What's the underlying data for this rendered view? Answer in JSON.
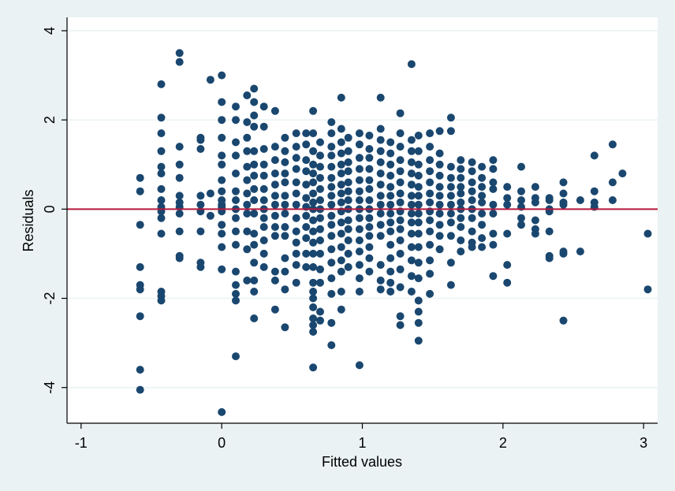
{
  "chart_data": {
    "type": "scatter",
    "title": "",
    "xlabel": "Fitted values",
    "ylabel": "Residuals",
    "xlim": [
      -1.1,
      3.1
    ],
    "ylim": [
      -4.8,
      4.3
    ],
    "xticks": [
      -1,
      0,
      1,
      2,
      3
    ],
    "yticks": [
      -4,
      -2,
      0,
      2,
      4
    ],
    "grid": "horizontal",
    "reference_line": {
      "y": 0,
      "color": "#b5173b"
    },
    "colors": {
      "background": "#eaf2f3",
      "plot_area": "#ffffff",
      "points": "#1a476f",
      "grid": "#eaf2f3"
    },
    "x_labels": [
      "-1",
      "0",
      "1",
      "2",
      "3"
    ],
    "y_labels": [
      "-4",
      "-2",
      "0",
      "2",
      "4"
    ],
    "point_count": 620,
    "point_columns_x": [
      -0.58,
      -0.43,
      -0.3,
      -0.15,
      -0.08,
      0,
      0.1,
      0.18,
      0.23,
      0.3,
      0.38,
      0.45,
      0.53,
      0.6,
      0.65,
      0.7,
      0.78,
      0.85,
      0.9,
      0.98,
      1.05,
      1.13,
      1.2,
      1.27,
      1.35,
      1.4,
      1.48,
      1.55,
      1.63,
      1.7,
      1.78,
      1.85,
      1.93,
      2.03,
      2.13,
      2.23,
      2.33,
      2.43,
      2.55,
      2.65,
      2.78,
      2.85,
      3.03
    ],
    "point_columns_y": [
      [
        0.7,
        0.4,
        -0.35,
        -1.3,
        -1.7,
        -1.8,
        -2.4,
        -3.6,
        -4.05
      ],
      [
        2.8,
        2.05,
        1.7,
        1.3,
        0.95,
        0.8,
        0.45,
        0.2,
        0.05,
        -0.05,
        -0.2,
        -0.55,
        -1.85,
        -1.95,
        -2.05
      ],
      [
        3.5,
        3.3,
        1.4,
        1.0,
        0.7,
        0.3,
        0.15,
        0.05,
        -0.1,
        -0.5,
        -1.05,
        -1.1
      ],
      [
        1.6,
        1.55,
        1.35,
        0.3,
        0.1,
        -0.05,
        -0.5,
        -1.2,
        -1.3
      ],
      [
        2.9,
        0.35,
        -0.15
      ],
      [
        3.0,
        2.4,
        2.0,
        1.6,
        1.2,
        1.0,
        0.65,
        0.4,
        0.2,
        0.1,
        0.05,
        -0.05,
        -0.35,
        -0.55,
        -0.85,
        -1.35,
        -4.55
      ],
      [
        2.3,
        2.0,
        1.5,
        1.2,
        0.8,
        0.4,
        0.2,
        0.0,
        -0.2,
        -0.5,
        -0.8,
        -1.4,
        -1.7,
        -1.9,
        -2.05,
        -3.3
      ],
      [
        2.55,
        1.95,
        1.6,
        1.3,
        0.95,
        0.65,
        0.35,
        0.1,
        -0.1,
        -0.5,
        -0.9,
        -1.6
      ],
      [
        2.7,
        2.4,
        2.1,
        1.85,
        1.3,
        1.0,
        0.75,
        0.45,
        0.2,
        -0.1,
        -0.55,
        -0.8,
        -1.2,
        -1.6,
        -1.85,
        -2.45
      ],
      [
        2.3,
        1.85,
        1.35,
        1.0,
        0.75,
        0.45,
        0.2,
        0.0,
        -0.2,
        -0.4,
        -0.7,
        -1.0,
        -1.3
      ],
      [
        2.2,
        1.4,
        1.1,
        0.8,
        0.55,
        0.3,
        0.1,
        -0.15,
        -0.4,
        -0.6,
        -1.4,
        -1.6,
        -2.25
      ],
      [
        1.6,
        1.3,
        1.05,
        0.8,
        0.6,
        0.3,
        0.1,
        -0.1,
        -0.4,
        -0.6,
        -1.1,
        -1.4,
        -1.8,
        -2.65
      ],
      [
        1.7,
        1.4,
        1.15,
        0.9,
        0.6,
        0.35,
        0.1,
        -0.2,
        -0.5,
        -0.75,
        -1.0,
        -1.25,
        -1.65
      ],
      [
        1.7,
        1.45,
        1.1,
        0.85,
        0.55,
        0.25,
        0.05,
        -0.15,
        -0.4,
        -0.65,
        -1.0,
        -1.3
      ],
      [
        2.2,
        1.7,
        1.3,
        1.0,
        0.8,
        0.6,
        0.35,
        0.15,
        0.0,
        -0.25,
        -0.5,
        -0.75,
        -1.0,
        -1.3,
        -1.65,
        -1.85,
        -2.0,
        -2.2,
        -2.45,
        -2.6,
        -2.75,
        -3.55
      ],
      [
        1.5,
        1.2,
        0.95,
        0.7,
        0.45,
        0.2,
        0.0,
        -0.2,
        -0.45,
        -0.7,
        -1.0,
        -1.35,
        -1.65,
        -2.3,
        -2.5
      ],
      [
        1.95,
        1.7,
        1.4,
        1.2,
        0.95,
        0.7,
        0.5,
        0.3,
        0.1,
        -0.15,
        -0.35,
        -0.6,
        -0.9,
        -1.2,
        -1.55,
        -1.9,
        -2.55,
        -3.05
      ],
      [
        2.5,
        1.8,
        1.5,
        1.25,
        1.0,
        0.8,
        0.55,
        0.35,
        0.15,
        -0.05,
        -0.3,
        -0.55,
        -0.85,
        -1.15,
        -1.4,
        -1.85,
        -2.25
      ],
      [
        1.6,
        1.3,
        1.05,
        0.85,
        0.6,
        0.4,
        0.2,
        0.0,
        -0.25,
        -0.45,
        -0.7,
        -1.0,
        -1.3
      ],
      [
        1.7,
        1.45,
        1.15,
        0.9,
        0.65,
        0.4,
        0.2,
        0.0,
        -0.2,
        -0.45,
        -0.7,
        -0.95,
        -1.25,
        -1.55,
        -1.85,
        -3.5
      ],
      [
        1.65,
        1.35,
        1.15,
        0.9,
        0.65,
        0.45,
        0.2,
        0.0,
        -0.2,
        -0.4,
        -0.6,
        -0.85,
        -1.1,
        -1.4
      ],
      [
        2.5,
        1.8,
        1.55,
        1.3,
        1.05,
        0.8,
        0.55,
        0.3,
        0.1,
        -0.1,
        -0.35,
        -0.6,
        -1.25,
        -1.6,
        -1.8
      ],
      [
        1.5,
        1.25,
        1.0,
        0.75,
        0.5,
        0.3,
        0.1,
        -0.1,
        -0.3,
        -0.5,
        -0.8,
        -1.1,
        -1.4,
        -1.65,
        -1.85
      ],
      [
        2.15,
        1.7,
        1.4,
        1.1,
        0.85,
        0.6,
        0.35,
        0.15,
        -0.05,
        -0.25,
        -0.45,
        -0.7,
        -1.0,
        -1.35,
        -1.75,
        -2.4,
        -2.6
      ],
      [
        3.25,
        1.55,
        1.3,
        1.05,
        0.8,
        0.55,
        0.3,
        0.1,
        -0.1,
        -0.3,
        -0.55,
        -0.85,
        -1.15,
        -1.5,
        -1.85
      ],
      [
        1.65,
        1.3,
        1.0,
        0.75,
        0.5,
        0.3,
        0.1,
        -0.1,
        -0.3,
        -0.55,
        -0.85,
        -1.2,
        -1.55,
        -2.05,
        -2.3,
        -2.55,
        -2.95
      ],
      [
        1.7,
        1.4,
        1.1,
        0.85,
        0.6,
        0.35,
        0.15,
        -0.05,
        -0.25,
        -0.5,
        -0.8,
        -1.15,
        -1.45,
        -1.9
      ],
      [
        1.75,
        1.25,
        1.0,
        0.75,
        0.5,
        0.3,
        0.1,
        -0.1,
        -0.35,
        -0.6,
        -0.9
      ],
      [
        2.05,
        1.75,
        0.95,
        0.7,
        0.5,
        0.3,
        0.1,
        -0.1,
        -0.3,
        -0.6,
        -1.2,
        -1.7
      ],
      [
        1.1,
        0.9,
        0.7,
        0.5,
        0.35,
        0.15,
        0.0,
        -0.2,
        -0.4,
        -0.7,
        -0.95
      ],
      [
        1.05,
        0.85,
        0.6,
        0.4,
        0.2,
        0.0,
        -0.2,
        -0.5,
        -0.75,
        -0.85
      ],
      [
        0.95,
        0.7,
        0.5,
        0.3,
        0.15,
        -0.1,
        -0.35,
        -0.65,
        -0.85
      ],
      [
        1.1,
        0.9,
        0.6,
        0.45,
        0.1,
        -0.1,
        -0.55,
        -0.8,
        -1.5
      ],
      [
        0.5,
        0.25,
        0.1,
        -0.55,
        -1.25,
        -1.65
      ],
      [
        0.95,
        0.4,
        0.2,
        0.05,
        -0.2,
        -0.35
      ],
      [
        0.5,
        0.25,
        0.15,
        -0.25,
        -0.45,
        -0.55
      ],
      [
        0.25,
        0.2,
        0.0,
        -0.05,
        -0.5,
        -1.05,
        -1.1
      ],
      [
        0.6,
        0.35,
        0.15,
        0.1,
        -0.95,
        -1.0,
        -2.5
      ],
      [
        0.2,
        -0.95
      ],
      [
        1.2,
        0.4,
        0.15,
        0.05
      ],
      [
        1.45,
        0.6,
        0.2
      ],
      [
        0.8
      ],
      [
        -0.55,
        -1.8
      ]
    ]
  }
}
